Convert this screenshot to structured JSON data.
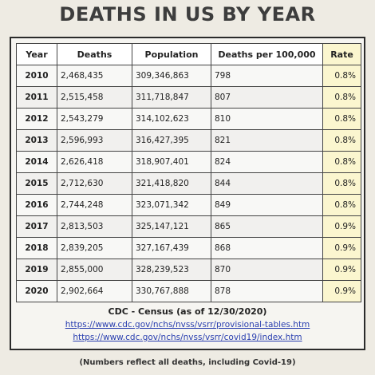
{
  "title": "DEATHS IN US BY YEAR",
  "table": {
    "headers": [
      "Year",
      "Deaths",
      "Population",
      "Deaths per 100,000",
      "Rate"
    ],
    "rows": [
      [
        "2010",
        "2,468,435",
        "309,346,863",
        "798",
        "0.8%"
      ],
      [
        "2011",
        "2,515,458",
        "311,718,847",
        "807",
        "0.8%"
      ],
      [
        "2012",
        "2,543,279",
        "314,102,623",
        "810",
        "0.8%"
      ],
      [
        "2013",
        "2,596,993",
        "316,427,395",
        "821",
        "0.8%"
      ],
      [
        "2014",
        "2,626,418",
        "318,907,401",
        "824",
        "0.8%"
      ],
      [
        "2015",
        "2,712,630",
        "321,418,820",
        "844",
        "0.8%"
      ],
      [
        "2016",
        "2,744,248",
        "323,071,342",
        "849",
        "0.8%"
      ],
      [
        "2017",
        "2,813,503",
        "325,147,121",
        "865",
        "0.9%"
      ],
      [
        "2018",
        "2,839,205",
        "327,167,439",
        "868",
        "0.9%"
      ],
      [
        "2019",
        "2,855,000",
        "328,239,523",
        "870",
        "0.9%"
      ],
      [
        "2020",
        "2,902,664",
        "330,767,888",
        "878",
        "0.9%"
      ]
    ]
  },
  "source": {
    "title": "CDC - Census (as of 12/30/2020)",
    "links": [
      "https://www.cdc.gov/nchs/nvss/vsrr/provisional-tables.htm",
      "https://www.cdc.gov/nchs/nvss/vsrr/covid19/index.htm"
    ]
  },
  "footnote": "(Numbers reflect all deaths, including Covid-19)",
  "colors": {
    "rate_highlight": "#fbf6cf",
    "link": "#2a3fb0",
    "border": "#2b2b2b"
  }
}
